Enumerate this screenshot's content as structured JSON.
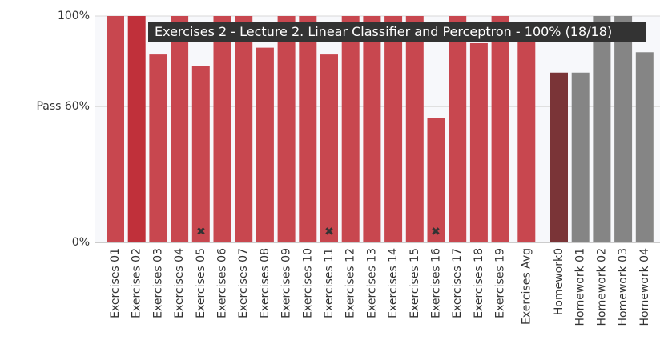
{
  "chart_data": {
    "type": "bar",
    "tooltip": "Exercises 2 - Lecture 2. Linear Classifier and Perceptron - 100% (18/18)",
    "categories": [
      "Exercises 01",
      "Exercises 02",
      "Exercises 03",
      "Exercises 04",
      "Exercises 05",
      "Exercises 06",
      "Exercises 07",
      "Exercises 08",
      "Exercises 09",
      "Exercises 10",
      "Exercises 11",
      "Exercises 12",
      "Exercises 13",
      "Exercises 14",
      "Exercises 15",
      "Exercises 16",
      "Exercises 17",
      "Exercises 18",
      "Exercises 19",
      "Exercises Avg",
      "Homework0",
      "Homework 01",
      "Homework 02",
      "Homework 03",
      "Homework 04"
    ],
    "values": [
      100,
      100,
      83,
      100,
      78,
      100,
      100,
      86,
      100,
      100,
      83,
      100,
      100,
      100,
      100,
      55,
      100,
      88,
      100,
      93,
      75,
      75,
      100,
      100,
      84
    ],
    "colors": [
      "#c8474f",
      "#c0303a",
      "#c8474f",
      "#c8474f",
      "#c8474f",
      "#c8474f",
      "#c8474f",
      "#c8474f",
      "#c8474f",
      "#c8474f",
      "#c8474f",
      "#c8474f",
      "#c8474f",
      "#c8474f",
      "#c8474f",
      "#c8474f",
      "#c8474f",
      "#c8474f",
      "#c8474f",
      "#c8474f",
      "#7a3437",
      "#858585",
      "#858585",
      "#858585",
      "#858585"
    ],
    "ylim": [
      0,
      100
    ],
    "yticks": [
      {
        "value": 0,
        "label": "0%"
      },
      {
        "value": 60,
        "label": "Pass 60%"
      },
      {
        "value": 100,
        "label": "100%"
      }
    ],
    "grid": true
  }
}
